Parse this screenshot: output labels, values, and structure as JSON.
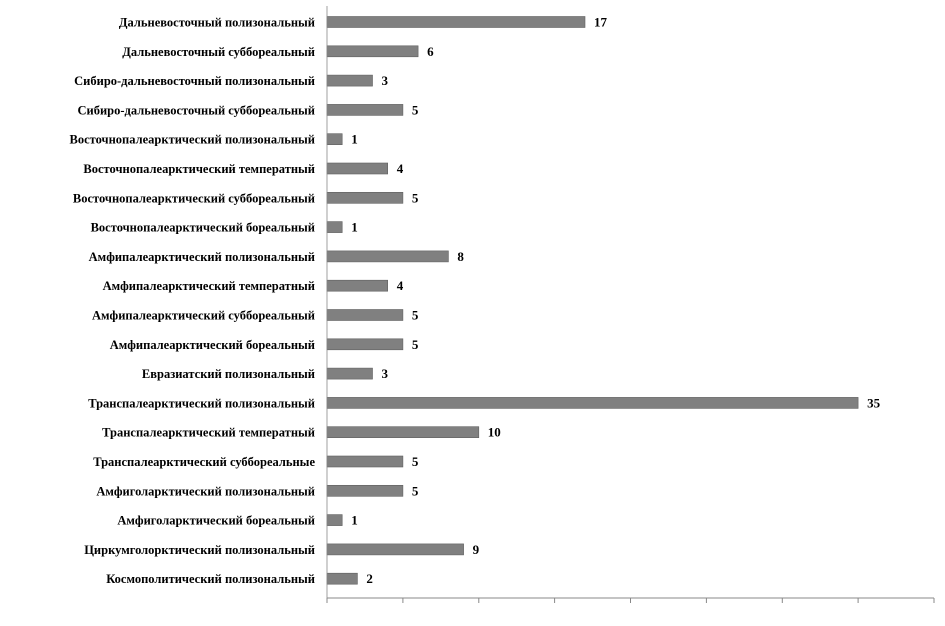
{
  "chart_data": {
    "type": "bar",
    "orientation": "horizontal",
    "categories": [
      "Дальневосточный полизональный",
      "Дальневосточный суббореальный",
      "Сибиро-дальневосточный полизональный",
      "Сибиро-дальневосточный суббореальный",
      "Восточнопалеарктический полизональный",
      "Восточнопалеарктический температный",
      "Восточнопалеарктический суббореальный",
      "Восточнопалеарктический бореальный",
      "Амфипалеарктический полизональный",
      "Амфипалеарктический температный",
      "Амфипалеарктический суббореальный",
      "Амфипалеарктический бореальный",
      "Евразиатский полизональный",
      "Транспалеарктический полизональный",
      "Транспалеарктический температный",
      "Транспалеарктический суббореальные",
      "Амфиголарктический полизональный",
      "Амфиголарктический бореальный",
      "Циркумголорктический полизональный",
      "Космополитический полизональный"
    ],
    "values": [
      17,
      6,
      3,
      5,
      1,
      4,
      5,
      1,
      8,
      4,
      5,
      5,
      3,
      35,
      10,
      5,
      5,
      1,
      9,
      2
    ],
    "xlim": [
      0,
      40
    ],
    "x_tick_step": 5,
    "show_tick_labels": false,
    "grid": false,
    "legend": "none",
    "colors": {
      "bar": "#808080",
      "bar_edge": "#5f5f5f",
      "axis": "#888888",
      "text": "#000000"
    }
  }
}
